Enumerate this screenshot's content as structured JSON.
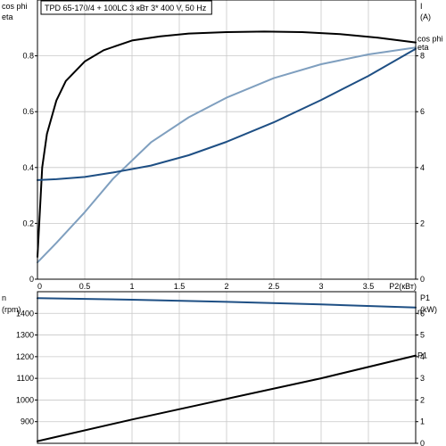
{
  "title": "TPD 65-170/4 + 100LC    3 кВт   3* 400 V, 50 Hz",
  "chart_data": [
    {
      "type": "line",
      "x_label": "P2(кВт)",
      "x_ticks": [
        "0",
        "0.5",
        "1",
        "1.5",
        "2",
        "2.5",
        "3",
        "3.5"
      ],
      "xlim": [
        0,
        4
      ],
      "left_axis": {
        "labels": [
          "cos phi",
          "eta"
        ],
        "ylim": [
          0,
          1.0
        ],
        "ticks": [
          "0",
          "0.2",
          "0.4",
          "0.6",
          "0.8"
        ]
      },
      "right_axis": {
        "labels": [
          "I",
          "(A)"
        ],
        "ylim": [
          0,
          10
        ],
        "ticks": [
          "0",
          "2",
          "4",
          "6",
          "8"
        ]
      },
      "grid": true,
      "series": [
        {
          "name": "eta",
          "axis": "left",
          "color": "#000000",
          "x": [
            0,
            0.05,
            0.1,
            0.2,
            0.3,
            0.5,
            0.7,
            1.0,
            1.3,
            1.6,
            2.0,
            2.4,
            2.8,
            3.2,
            3.6,
            4.0
          ],
          "y": [
            0.08,
            0.4,
            0.52,
            0.64,
            0.71,
            0.78,
            0.82,
            0.855,
            0.87,
            0.88,
            0.885,
            0.887,
            0.885,
            0.878,
            0.865,
            0.848
          ]
        },
        {
          "name": "cos phi",
          "axis": "left",
          "color": "#7f9fbf",
          "x": [
            0,
            0.2,
            0.5,
            0.8,
            1.2,
            1.6,
            2.0,
            2.5,
            3.0,
            3.5,
            4.0
          ],
          "y": [
            0.06,
            0.13,
            0.24,
            0.36,
            0.49,
            0.58,
            0.65,
            0.72,
            0.77,
            0.805,
            0.83
          ]
        },
        {
          "name": "I",
          "axis": "right",
          "color": "#1e4f84",
          "x": [
            0,
            0.2,
            0.5,
            0.8,
            1.2,
            1.6,
            2.0,
            2.5,
            3.0,
            3.5,
            4.0
          ],
          "y": [
            3.55,
            3.58,
            3.66,
            3.82,
            4.07,
            4.44,
            4.92,
            5.62,
            6.42,
            7.28,
            8.25
          ]
        }
      ]
    },
    {
      "type": "line",
      "xlim": [
        0,
        4
      ],
      "left_axis": {
        "labels": [
          "n",
          "(rpm)"
        ],
        "ylim": [
          800,
          1500
        ],
        "ticks": [
          "900",
          "1000",
          "1100",
          "1200",
          "1300",
          "1400"
        ]
      },
      "right_axis": {
        "labels": [
          "P1",
          "(kW)"
        ],
        "ylim": [
          0,
          7
        ],
        "ticks": [
          "0",
          "1",
          "2",
          "3",
          "4",
          "5",
          "6"
        ]
      },
      "grid": true,
      "series": [
        {
          "name": "n",
          "axis": "left",
          "color": "#1e4f84",
          "x": [
            0,
            1,
            2,
            3,
            4
          ],
          "y": [
            1470,
            1463,
            1453,
            1441,
            1427
          ]
        },
        {
          "name": "P1",
          "axis": "right",
          "color": "#000000",
          "x": [
            0,
            1,
            2,
            3,
            4
          ],
          "y": [
            0.1,
            1.1,
            2.05,
            3.0,
            4.05
          ]
        }
      ]
    }
  ]
}
